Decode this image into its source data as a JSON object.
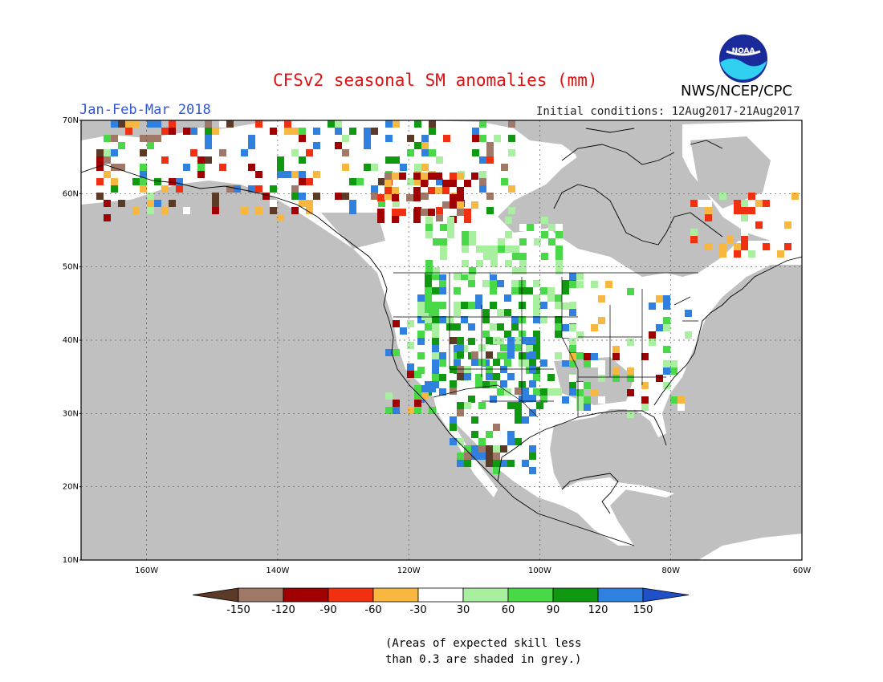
{
  "title": "CFSv2 seasonal SM anomalies (mm)",
  "season": "Jan-Feb-Mar 2018",
  "initial_conditions": "Initial conditions: 12Aug2017-21Aug2017",
  "agency": "NWS/NCEP/CPC",
  "logo": {
    "text": "NOAA",
    "icon": "noaa-logo-icon"
  },
  "note_line1": "(Areas of expected skill less",
  "note_line2": "than 0.3 are shaded in grey.)",
  "map": {
    "lon_range": [
      -170,
      -60
    ],
    "lat_range": [
      10,
      70
    ],
    "lat_ticks": [
      {
        "value": 70,
        "label": "70N"
      },
      {
        "value": 60,
        "label": "60N"
      },
      {
        "value": 50,
        "label": "50N"
      },
      {
        "value": 40,
        "label": "40N"
      },
      {
        "value": 30,
        "label": "30N"
      },
      {
        "value": 20,
        "label": "20N"
      },
      {
        "value": 10,
        "label": "10N"
      }
    ],
    "lon_ticks": [
      {
        "value": -160,
        "label": "160W"
      },
      {
        "value": -140,
        "label": "140W"
      },
      {
        "value": -120,
        "label": "120W"
      },
      {
        "value": -100,
        "label": "100W"
      },
      {
        "value": -80,
        "label": "80W"
      },
      {
        "value": -60,
        "label": "60W"
      }
    ],
    "grey_color": "#c0c0c0"
  },
  "colorbar": {
    "labels": [
      "-150",
      "-120",
      "-90",
      "-60",
      "-30",
      "30",
      "60",
      "90",
      "120",
      "150"
    ],
    "colors": [
      "#5c3a28",
      "#a07868",
      "#a00000",
      "#f03010",
      "#f8b840",
      "#ffffff",
      "#a8f0a0",
      "#48d848",
      "#109810",
      "#3080e0",
      "#2050c8"
    ]
  }
}
